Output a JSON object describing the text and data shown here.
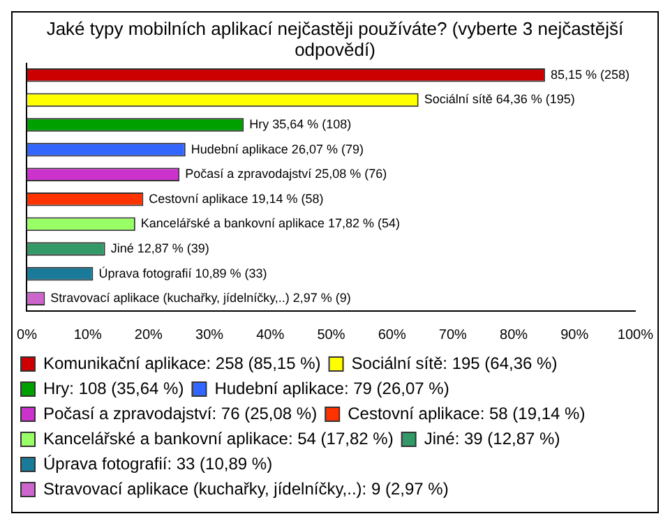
{
  "chart_data": {
    "type": "bar",
    "orientation": "horizontal",
    "stacked": true,
    "title": "Jaké typy mobilních aplikací nejčastěji používáte? (vyberte 3 nejčastější odpovědí)",
    "categories": [
      null,
      null,
      null,
      null,
      null,
      null,
      null,
      null,
      null,
      null
    ],
    "xlim": [
      0,
      100
    ],
    "xticks": [
      {
        "value": 0,
        "label": "0%"
      },
      {
        "value": 10,
        "label": "10%"
      },
      {
        "value": 20,
        "label": "20%"
      },
      {
        "value": 30,
        "label": "30%"
      },
      {
        "value": 40,
        "label": "40%"
      },
      {
        "value": 50,
        "label": "50%"
      },
      {
        "value": 60,
        "label": "60%"
      },
      {
        "value": 70,
        "label": "70%"
      },
      {
        "value": 80,
        "label": "80%"
      },
      {
        "value": 90,
        "label": "90%"
      },
      {
        "value": 100,
        "label": "100%"
      }
    ],
    "tick_labels": "x",
    "legend": "bottom",
    "series": [
      {
        "name": "Komunikační aplikace: 258 (85,15 %)",
        "color": "#cc0000",
        "values": [
          85.15,
          null,
          null,
          null,
          null,
          null,
          null,
          null,
          null,
          null
        ],
        "value_labels": [
          "85,15 % (258)",
          null,
          null,
          null,
          null,
          null,
          null,
          null,
          null,
          null
        ]
      },
      {
        "name": "Sociální sítě: 195 (64,36 %)",
        "color": "#ffff00",
        "values": [
          null,
          64.36,
          null,
          null,
          null,
          null,
          null,
          null,
          null,
          null
        ],
        "value_labels": [
          null,
          "Sociální sítě 64,36 % (195)",
          null,
          null,
          null,
          null,
          null,
          null,
          null,
          null
        ]
      },
      {
        "name": "Hry: 108 (35,64 %)",
        "color": "#00a000",
        "values": [
          null,
          null,
          35.64,
          null,
          null,
          null,
          null,
          null,
          null,
          null
        ],
        "value_labels": [
          null,
          null,
          "Hry 35,64 % (108)",
          null,
          null,
          null,
          null,
          null,
          null,
          null
        ]
      },
      {
        "name": "Hudební aplikace: 79 (26,07 %)",
        "color": "#3366ff",
        "values": [
          null,
          null,
          null,
          26.07,
          null,
          null,
          null,
          null,
          null,
          null
        ],
        "value_labels": [
          null,
          null,
          null,
          "Hudební aplikace 26,07 % (79)",
          null,
          null,
          null,
          null,
          null,
          null
        ]
      },
      {
        "name": "Počasí a zpravodajství: 76 (25,08 %)",
        "color": "#cc33cc",
        "values": [
          null,
          null,
          null,
          null,
          25.08,
          null,
          null,
          null,
          null,
          null
        ],
        "value_labels": [
          null,
          null,
          null,
          null,
          "Počasí a zpravodajství 25,08 % (76)",
          null,
          null,
          null,
          null,
          null
        ]
      },
      {
        "name": "Cestovní aplikace: 58 (19,14 %)",
        "color": "#ff3300",
        "values": [
          null,
          null,
          null,
          null,
          null,
          19.14,
          null,
          null,
          null,
          null
        ],
        "value_labels": [
          null,
          null,
          null,
          null,
          null,
          "Cestovní aplikace 19,14 % (58)",
          null,
          null,
          null,
          null
        ]
      },
      {
        "name": "Kancelářské a bankovní aplikace: 54 (17,82 %)",
        "color": "#99ff66",
        "values": [
          null,
          null,
          null,
          null,
          null,
          null,
          17.82,
          null,
          null,
          null
        ],
        "value_labels": [
          null,
          null,
          null,
          null,
          null,
          null,
          "Kancelářské a bankovní aplikace 17,82 % (54)",
          null,
          null,
          null
        ]
      },
      {
        "name": "Jiné: 39 (12,87 %)",
        "color": "#339966",
        "values": [
          null,
          null,
          null,
          null,
          null,
          null,
          null,
          12.87,
          null,
          null
        ],
        "value_labels": [
          null,
          null,
          null,
          null,
          null,
          null,
          null,
          "Jiné 12,87 % (39)",
          null,
          null
        ]
      },
      {
        "name": "Úprava fotografií: 33 (10,89 %)",
        "color": "#1a7a9a",
        "values": [
          null,
          null,
          null,
          null,
          null,
          null,
          null,
          null,
          10.89,
          null
        ],
        "value_labels": [
          null,
          null,
          null,
          null,
          null,
          null,
          null,
          null,
          "Úprava fotografií 10,89 % (33)",
          null
        ]
      },
      {
        "name": "Stravovací aplikace (kuchařky, jídelníčky,..): 9 (2,97 %)",
        "color": "#cc66cc",
        "values": [
          null,
          null,
          null,
          null,
          null,
          null,
          null,
          null,
          null,
          2.97
        ],
        "value_labels": [
          null,
          null,
          null,
          null,
          null,
          null,
          null,
          null,
          null,
          "Stravovací aplikace (kuchařky, jídelníčky,..) 2,97 % (9)"
        ]
      }
    ]
  }
}
